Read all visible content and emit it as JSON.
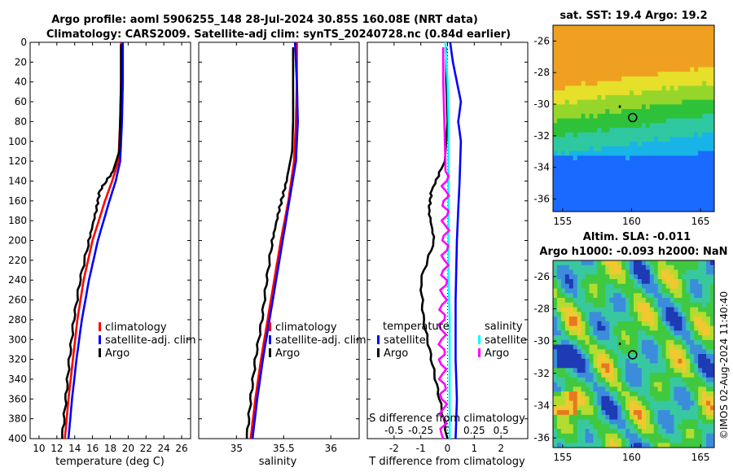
{
  "title_line1": "Argo profile: aoml 5906255_148 28-Jul-2024 30.85S 160.08E (NRT data)",
  "title_line2": "Climatology: CARS2009. Satellite-adj clim: synTS_20240728.nc (0.84d earlier)",
  "credit": "©IMOS 02-Aug-2024 11:40:40",
  "colors": {
    "climatology": "#ff0000",
    "satellite": "#0000ff",
    "argo": "#000000",
    "satellite_salinity": "#00ffff",
    "argo_salinity": "#ff00ff"
  },
  "chart_data": [
    {
      "type": "line",
      "name": "temperature",
      "xlabel": "temperature (deg C)",
      "ylabel": "",
      "xlim": [
        9,
        27
      ],
      "ylim": [
        400,
        0
      ],
      "xticks": [
        10,
        12,
        14,
        16,
        18,
        20,
        22,
        24,
        26
      ],
      "yticks": [
        0,
        20,
        40,
        60,
        80,
        100,
        120,
        140,
        160,
        180,
        200,
        220,
        240,
        260,
        280,
        300,
        320,
        340,
        360,
        380,
        400
      ],
      "legend": [
        "climatology",
        "satellite-adj. clim",
        "Argo"
      ],
      "series": [
        {
          "name": "climatology",
          "color": "#ff0000",
          "depth": [
            0,
            40,
            80,
            120,
            140,
            160,
            200,
            240,
            280,
            320,
            360,
            400
          ],
          "values": [
            19.2,
            19.2,
            19.1,
            18.9,
            18.2,
            17.4,
            16.0,
            15.0,
            14.3,
            13.8,
            13.3,
            12.9
          ]
        },
        {
          "name": "satellite-adj. clim",
          "color": "#0000ff",
          "depth": [
            0,
            40,
            80,
            120,
            140,
            160,
            200,
            240,
            280,
            320,
            360,
            400
          ],
          "values": [
            19.4,
            19.4,
            19.3,
            19.1,
            18.6,
            17.9,
            16.6,
            15.6,
            14.8,
            14.2,
            13.7,
            13.3
          ]
        },
        {
          "name": "Argo",
          "color": "#000000",
          "depth": [
            2,
            40,
            80,
            110,
            130,
            150,
            170,
            200,
            240,
            280,
            320,
            360,
            400
          ],
          "values": [
            19.2,
            19.2,
            19.1,
            19.0,
            18.3,
            16.8,
            16.4,
            15.6,
            14.6,
            13.9,
            13.4,
            13.0,
            12.6
          ]
        }
      ]
    },
    {
      "type": "line",
      "name": "salinity",
      "xlabel": "salinity",
      "ylabel": "",
      "xlim": [
        34.6,
        36.3
      ],
      "ylim": [
        400,
        0
      ],
      "xticks": [
        35,
        35.5,
        36
      ],
      "legend": [
        "climatology",
        "satellite-adj. clim",
        "Argo"
      ],
      "series": [
        {
          "name": "climatology",
          "color": "#ff0000",
          "depth": [
            0,
            40,
            80,
            120,
            160,
            200,
            240,
            280,
            320,
            360,
            400
          ],
          "values": [
            35.64,
            35.64,
            35.63,
            35.61,
            35.55,
            35.47,
            35.4,
            35.33,
            35.26,
            35.2,
            35.15
          ]
        },
        {
          "name": "satellite-adj. clim",
          "color": "#0000ff",
          "depth": [
            0,
            40,
            80,
            120,
            160,
            200,
            240,
            280,
            320,
            360,
            400
          ],
          "values": [
            35.62,
            35.64,
            35.65,
            35.63,
            35.56,
            35.49,
            35.42,
            35.35,
            35.28,
            35.22,
            35.17
          ]
        },
        {
          "name": "Argo",
          "color": "#000000",
          "depth": [
            5,
            40,
            80,
            110,
            140,
            170,
            200,
            240,
            280,
            320,
            360,
            400
          ],
          "values": [
            35.6,
            35.6,
            35.6,
            35.59,
            35.53,
            35.45,
            35.38,
            35.32,
            35.27,
            35.2,
            35.15,
            35.11
          ]
        }
      ]
    },
    {
      "type": "line",
      "name": "difference",
      "xlabel": "T difference from climatology",
      "xlabel_top": "S difference from climatology",
      "xlim": [
        -3,
        3
      ],
      "xticks": [
        -2,
        -1,
        0,
        1,
        2
      ],
      "xlim_top": [
        -0.75,
        0.75
      ],
      "xticks_top": [
        -0.5,
        -0.25,
        0,
        0.25,
        0.5
      ],
      "xtick_labels_top": [
        "-0.5",
        "-0.25",
        "0",
        "0.25",
        "0.5"
      ],
      "ylim": [
        400,
        0
      ],
      "legend_temperature_title": "temperature",
      "legend_salinity_title": "salinity",
      "legend_temperature": [
        "satellite",
        "Argo"
      ],
      "legend_salinity": [
        "satellite",
        "Argo"
      ],
      "series": [
        {
          "name": "temperature satellite",
          "color": "#0000ff",
          "depth": [
            0,
            20,
            40,
            60,
            80,
            100,
            140,
            200,
            260,
            320,
            360,
            400
          ],
          "values": [
            0.1,
            0.2,
            0.35,
            0.5,
            0.4,
            0.5,
            0.45,
            0.35,
            0.3,
            0.3,
            0.35,
            0.3
          ]
        },
        {
          "name": "temperature Argo",
          "color": "#000000",
          "depth": [
            5,
            40,
            80,
            120,
            150,
            170,
            200,
            240,
            280,
            320,
            360,
            400
          ],
          "values": [
            -0.05,
            -0.05,
            0,
            -0.1,
            -0.6,
            -0.7,
            -0.5,
            -1.0,
            -0.9,
            -0.6,
            -0.3,
            0.0
          ]
        },
        {
          "name": "salinity satellite",
          "color": "#00ffff",
          "depth": [
            0,
            40,
            80,
            120,
            160,
            200,
            240,
            280,
            320,
            360,
            400
          ],
          "values": [
            -0.02,
            0.0,
            0.01,
            0.01,
            0.01,
            0.01,
            0.01,
            0.02,
            0.02,
            0.02,
            0.02
          ]
        },
        {
          "name": "salinity Argo",
          "color": "#ff00ff",
          "depth": [
            5,
            40,
            80,
            120,
            160,
            200,
            240,
            280,
            320,
            360,
            400
          ],
          "values": [
            -0.04,
            -0.04,
            -0.03,
            -0.02,
            -0.02,
            -0.02,
            -0.03,
            -0.05,
            -0.05,
            -0.04,
            -0.04
          ]
        }
      ]
    },
    {
      "type": "heatmap",
      "name": "sst_map",
      "title": "sat. SST: 19.4 Argo: 19.2",
      "xticks": [
        155,
        160,
        165
      ],
      "yticks": [
        -26,
        -28,
        -30,
        -32,
        -34,
        -36
      ],
      "xlim": [
        154.3,
        166
      ],
      "ylim": [
        -36.8,
        -25
      ],
      "argo_position": [
        160.08,
        -30.85
      ]
    },
    {
      "type": "heatmap",
      "name": "sla_map",
      "title_line1": "Altim. SLA: -0.011",
      "title_line2": "Argo h1000: -0.093 h2000: NaN",
      "xticks": [
        155,
        160,
        165
      ],
      "yticks": [
        -26,
        -28,
        -30,
        -32,
        -34,
        -36
      ],
      "xlim": [
        154.3,
        166
      ],
      "ylim": [
        -36.6,
        -25
      ],
      "argo_position": [
        160.08,
        -30.85
      ]
    }
  ]
}
